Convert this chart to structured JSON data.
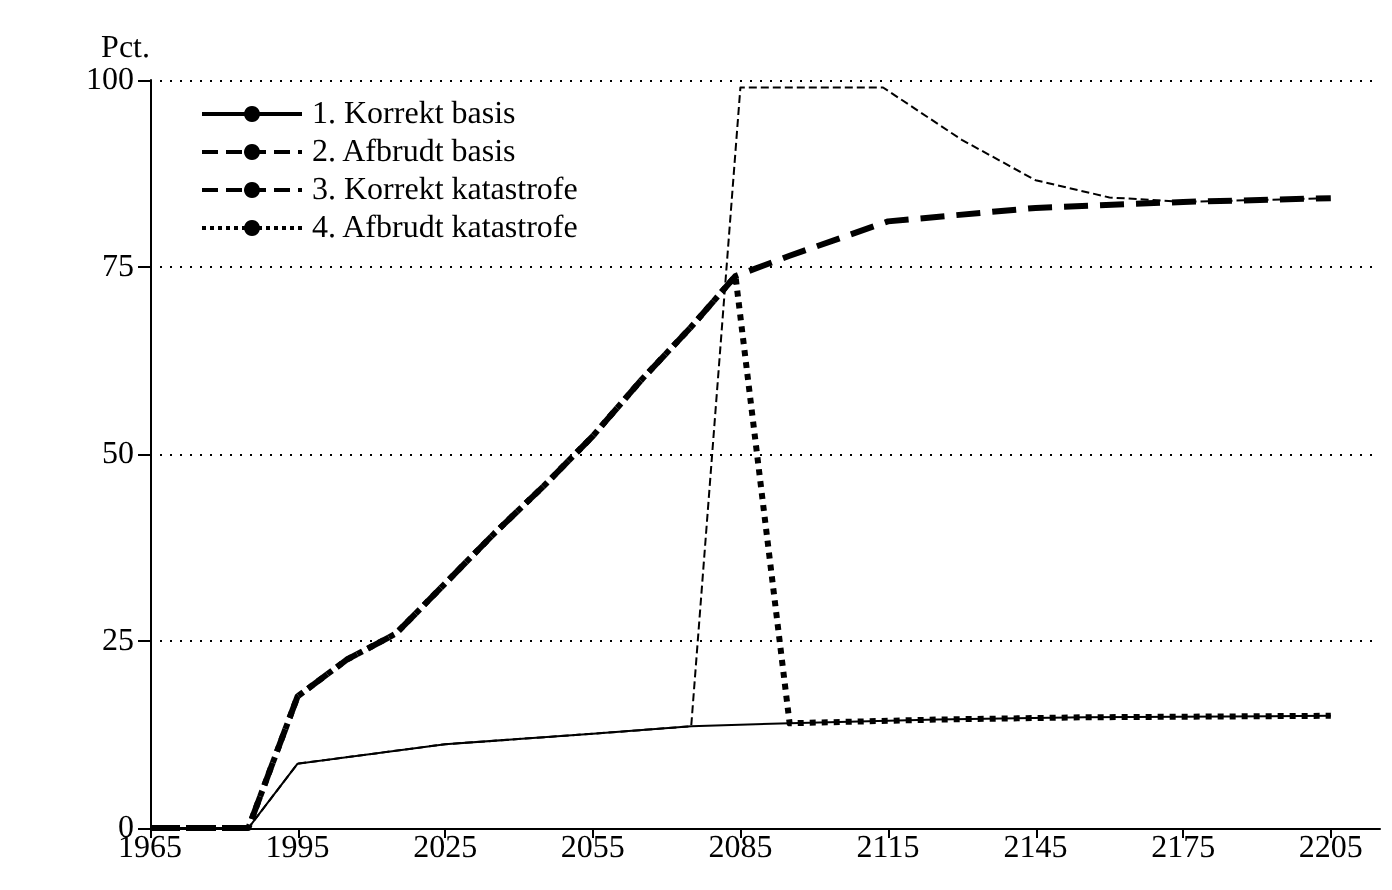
{
  "chart_data": {
    "type": "line",
    "ylabel": "Pct.",
    "xlim": [
      1965,
      2215
    ],
    "xticks": [
      1965,
      1995,
      2025,
      2055,
      2085,
      2115,
      2145,
      2175,
      2205
    ],
    "ylim": [
      0,
      100
    ],
    "yticks": [
      0,
      25,
      50,
      75,
      100
    ],
    "grid": "y",
    "legend": "top left",
    "marker": "none",
    "series": [
      {
        "name": "1. Korrekt basis",
        "color": "#000000",
        "line_style": "solid",
        "x": [
          1965,
          1985,
          1995,
          2025,
          2055,
          2075,
          2095,
          2125,
          2155,
          2205
        ],
        "values": [
          0,
          0,
          8.6,
          11.2,
          12.6,
          13.6,
          14,
          14.5,
          14.8,
          15
        ]
      },
      {
        "name": "2. Afbrudt basis",
        "color": "#000000",
        "line_style": "dashed",
        "x": [
          1965,
          1985,
          1995,
          2025,
          2055,
          2075,
          2085,
          2114,
          2130,
          2145,
          2160,
          2175,
          2205
        ],
        "values": [
          0,
          0,
          8.6,
          11.2,
          12.6,
          13.6,
          99,
          99,
          92,
          86.6,
          84.3,
          83.7,
          84.2
        ]
      },
      {
        "name": "3. Korrekt katastrofe",
        "color": "#000000",
        "line_style": "dashed",
        "x": [
          1965,
          1985,
          1995,
          2005,
          2015,
          2025,
          2035,
          2045,
          2055,
          2065,
          2075,
          2084,
          2095,
          2115,
          2145,
          2175,
          2205
        ],
        "values": [
          0,
          0,
          17.6,
          22.5,
          26,
          32.7,
          39.4,
          45.7,
          52.4,
          60,
          67,
          73.8,
          76.5,
          81.1,
          82.9,
          83.7,
          84.2
        ]
      },
      {
        "name": "4. Afbrudt katastrofe",
        "color": "#000000",
        "line_style": "dotted",
        "x": [
          1965,
          1985,
          1995,
          2005,
          2015,
          2025,
          2035,
          2045,
          2055,
          2065,
          2075,
          2084,
          2095,
          2125,
          2155,
          2205
        ],
        "values": [
          0,
          0,
          17.6,
          22.5,
          26,
          32.7,
          39.4,
          45.7,
          52.4,
          60,
          67,
          73.8,
          14,
          14.5,
          14.8,
          15
        ]
      }
    ]
  }
}
